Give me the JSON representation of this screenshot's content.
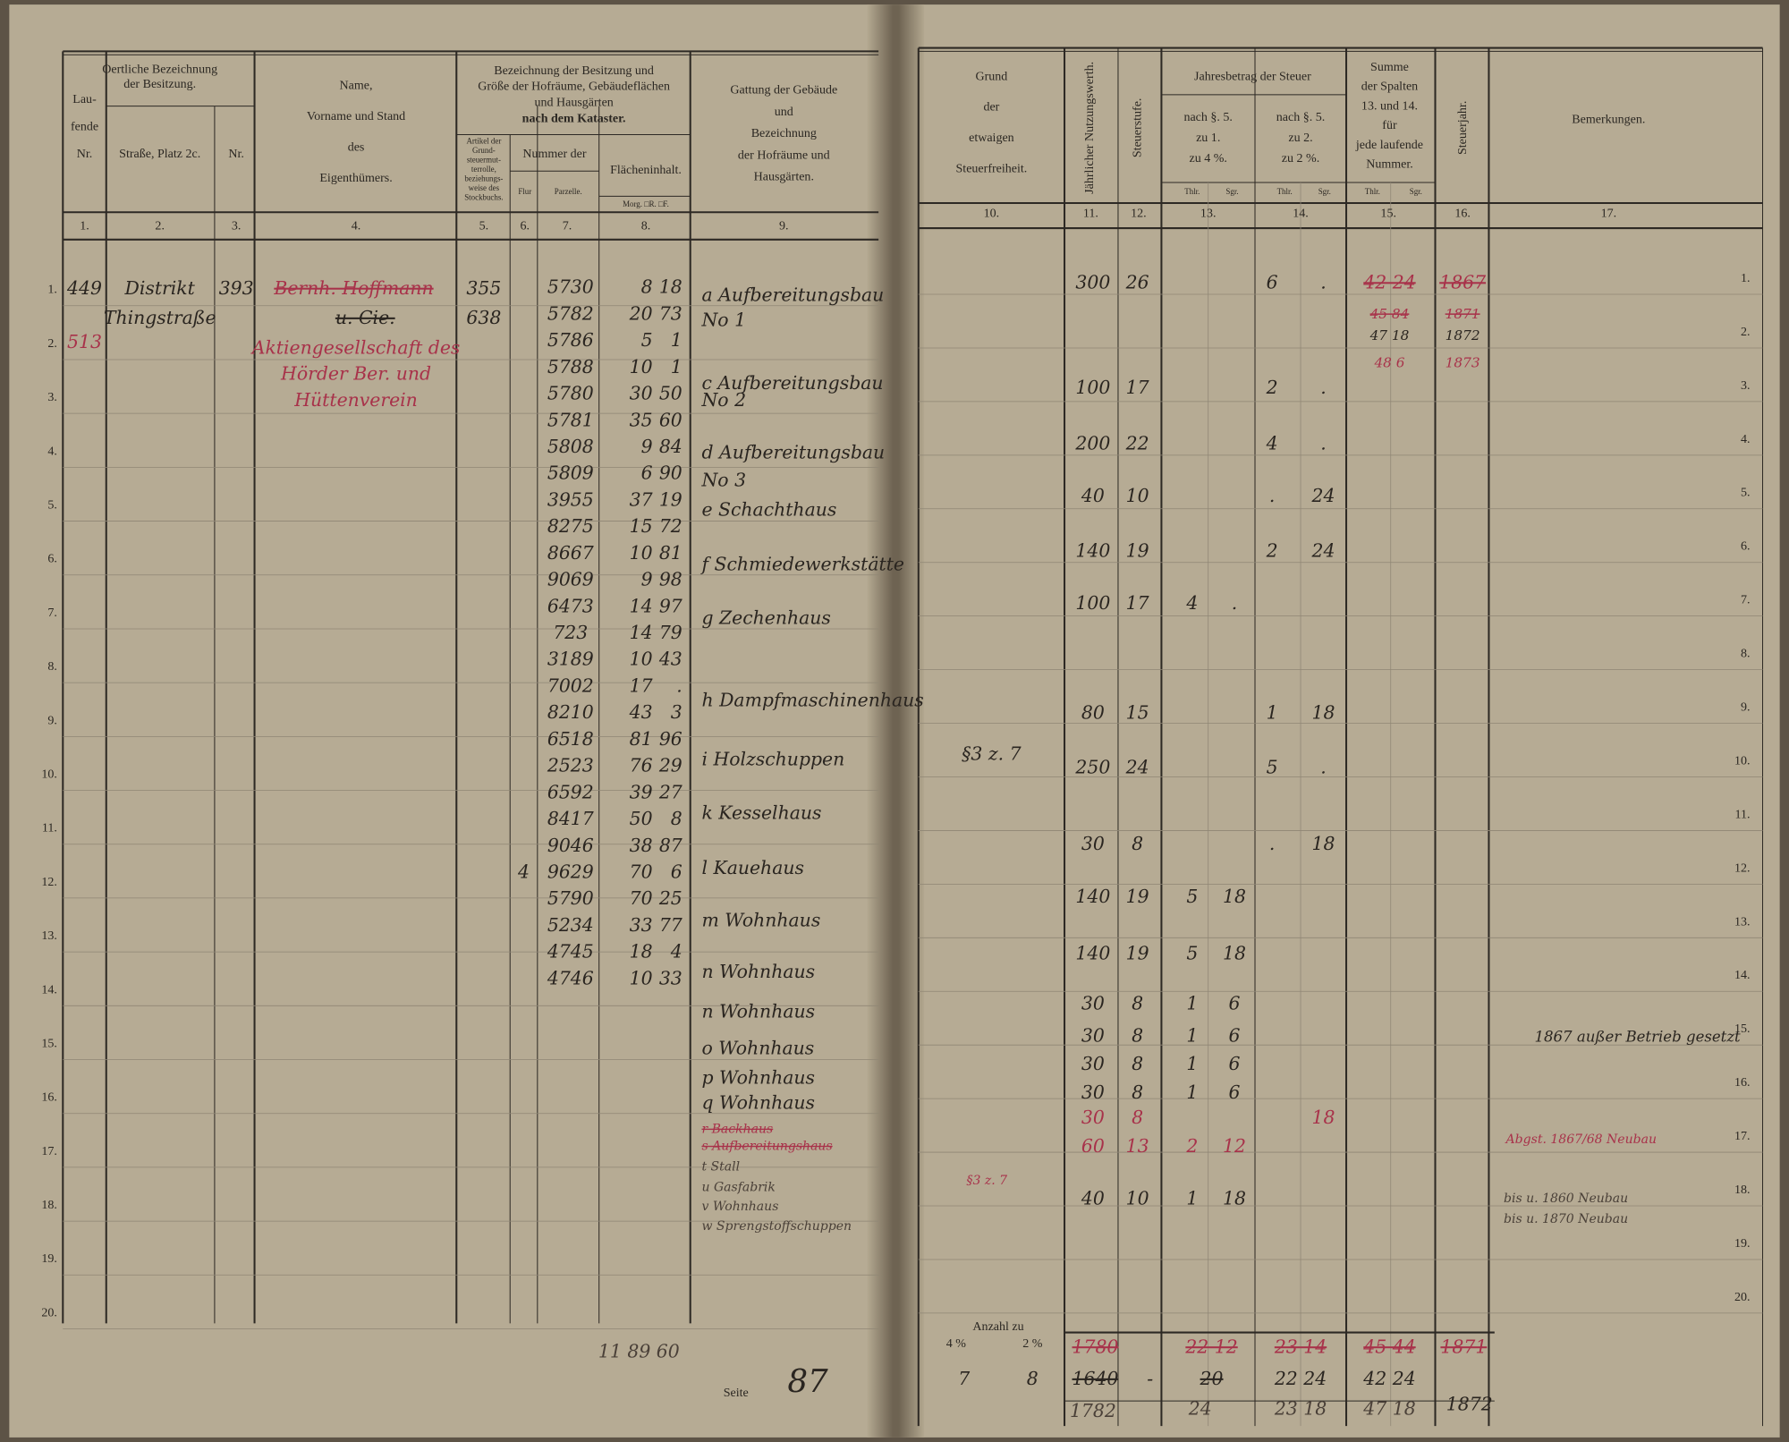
{
  "left_page": {
    "headers": {
      "col1": [
        "Lau-",
        "fende",
        "Nr."
      ],
      "col23": [
        "Oertliche Bezeichnung",
        "der Besitzung."
      ],
      "col2": "Straße, Platz 2c.",
      "col3": "Nr.",
      "col4": [
        "Name,",
        "Vorname und Stand",
        "des",
        "Eigenthümers."
      ],
      "col58": [
        "Bezeichnung der Besitzung und",
        "Größe der Hofräume, Gebäudeflächen",
        "und Hausgärten",
        "nach dem Kataster."
      ],
      "col5": [
        "Artikel der",
        "Grund-",
        "steuermut-",
        "terrolle,",
        "beziehungs-",
        "weise des",
        "Stockbuchs."
      ],
      "col67": "Nummer der",
      "col6": "Flur",
      "col7": "Parzelle.",
      "col8": "Flächeninhalt.",
      "col8_units": "Morg. □R. □F.",
      "col9": [
        "Gattung der Gebäude",
        "und",
        "Bezeichnung",
        "der Hofräume und",
        "Hausgärten."
      ]
    },
    "column_numbers": [
      "1.",
      "2.",
      "3.",
      "4.",
      "5.",
      "6.",
      "7.",
      "8.",
      "9."
    ],
    "row_numbers": [
      "1.",
      "2.",
      "3.",
      "4.",
      "5.",
      "6.",
      "7.",
      "8.",
      "9.",
      "10.",
      "11.",
      "12.",
      "13.",
      "14.",
      "15.",
      "16.",
      "17.",
      "18.",
      "19.",
      "20."
    ],
    "owner": {
      "nr": "449",
      "nr_red": "513",
      "street": [
        "Distrikt",
        "Thingstraße"
      ],
      "house_nr": "393",
      "name": "Bernh. Hoffmann",
      "name2": "u. Cie.",
      "name_red": [
        "Aktiengesellschaft des",
        "Hörder Ber. und",
        "Hüttenverein"
      ],
      "articles": [
        "355",
        "638"
      ]
    },
    "parcels": [
      {
        "parcel": "5730",
        "morgen": "8",
        "ruthen": "18"
      },
      {
        "parcel": "5782",
        "morgen": "20",
        "ruthen": "73"
      },
      {
        "parcel": "5786",
        "morgen": "5",
        "ruthen": "1"
      },
      {
        "parcel": "5788",
        "morgen": "10",
        "ruthen": "1"
      },
      {
        "parcel": "5780",
        "morgen": "30",
        "ruthen": "50"
      },
      {
        "parcel": "5781",
        "morgen": "35",
        "ruthen": "60"
      },
      {
        "parcel": "5808",
        "morgen": "9",
        "ruthen": "84"
      },
      {
        "parcel": "5809",
        "morgen": "6",
        "ruthen": "90"
      },
      {
        "parcel": "3955",
        "morgen": "37",
        "ruthen": "19"
      },
      {
        "parcel": "8275",
        "morgen": "15",
        "ruthen": "72"
      },
      {
        "parcel": "8667",
        "morgen": "10",
        "ruthen": "81"
      },
      {
        "parcel": "9069",
        "morgen": "9",
        "ruthen": "98"
      },
      {
        "parcel": "6473",
        "morgen": "14",
        "ruthen": "97"
      },
      {
        "parcel": "723",
        "morgen": "14",
        "ruthen": "79"
      },
      {
        "parcel": "3189",
        "morgen": "10",
        "ruthen": "43"
      },
      {
        "parcel": "7002",
        "morgen": "17",
        "ruthen": "."
      },
      {
        "parcel": "8210",
        "morgen": "43",
        "ruthen": "3"
      },
      {
        "parcel": "6518",
        "morgen": "81",
        "ruthen": "96"
      },
      {
        "parcel": "2523",
        "morgen": "76",
        "ruthen": "29"
      },
      {
        "parcel": "6592",
        "morgen": "39",
        "ruthen": "27"
      },
      {
        "parcel": "8417",
        "morgen": "50",
        "ruthen": "8"
      },
      {
        "parcel": "9046",
        "morgen": "38",
        "ruthen": "87"
      },
      {
        "parcel": "9629",
        "flur": "4",
        "morgen": "70",
        "ruthen": "6"
      },
      {
        "parcel": "5790",
        "morgen": "70",
        "ruthen": "25"
      },
      {
        "parcel": "5234",
        "morgen": "33",
        "ruthen": "77"
      },
      {
        "parcel": "4745",
        "morgen": "18",
        "ruthen": "4"
      },
      {
        "parcel": "4746",
        "morgen": "10",
        "ruthen": "33"
      }
    ],
    "buildings": [
      "a Aufbereitungsbau",
      "No 1",
      "c Aufbereitungsbau",
      "No 2",
      "d Aufbereitungsbau",
      "No 3",
      "e Schachthaus",
      "f Schmiedewerkstätte",
      "g Zechenhaus",
      "h Dampfmaschinenhaus",
      "i Holzschuppen",
      "k Kesselhaus",
      "l Kauehaus",
      "m Wohnhaus",
      "n Wohnhaus",
      "n Wohnhaus",
      "o Wohnhaus",
      "p Wohnhaus",
      "q Wohnhaus",
      "r Backhaus",
      "s Aufbereitungshaus",
      "t Stall",
      "u Gasfabrik",
      "v Wohnhaus",
      "w Sprengstoffschuppen"
    ],
    "footer": {
      "area_total": "11 89 60",
      "page_label": "Seite",
      "page_number": "87"
    }
  },
  "right_page": {
    "headers": {
      "col10": [
        "Grund",
        "der",
        "etwaigen",
        "Steuerfreiheit."
      ],
      "col11": "Jährlicher Nutzungswerth.",
      "col12": "Steuerstufe.",
      "col1314": "Jahresbetrag der Steuer",
      "col13": [
        "nach §. 5.",
        "zu 1.",
        "zu 4 %."
      ],
      "col14": [
        "nach §. 5.",
        "zu 2.",
        "zu 2 %."
      ],
      "col15": [
        "Summe",
        "der Spalten",
        "13. und 14.",
        "für",
        "jede laufende",
        "Nummer."
      ],
      "col16": "Steuerjahr.",
      "col17": "Bemerkungen.",
      "thlr": "Thlr.",
      "sgr": "Sgr."
    },
    "column_numbers": [
      "10.",
      "11.",
      "12.",
      "13.",
      "14.",
      "15.",
      "16.",
      "17."
    ],
    "row_numbers": [
      "1.",
      "2.",
      "3.",
      "4.",
      "5.",
      "6.",
      "7.",
      "8.",
      "9.",
      "10.",
      "11.",
      "12.",
      "13.",
      "14.",
      "15.",
      "16.",
      "17.",
      "18.",
      "19.",
      "20."
    ],
    "entries": [
      {
        "value": "300",
        "class": "26",
        "t14": "6",
        "s14": "."
      },
      {
        "value": "100",
        "class": "17",
        "t14": "2",
        "s14": "."
      },
      {
        "value": "200",
        "class": "22",
        "t14": "4",
        "s14": "."
      },
      {
        "value": "40",
        "class": "10",
        "t14": ".",
        "s14": "24"
      },
      {
        "value": "140",
        "class": "19",
        "t14": "2",
        "s14": "24"
      },
      {
        "value": "100",
        "class": "17",
        "t13": "4",
        "s13": "."
      },
      {
        "value": "80",
        "class": "15",
        "t14": "1",
        "s14": "18"
      },
      {
        "value": "250",
        "class": "24",
        "t14": "5",
        "s14": "."
      },
      {
        "value": "30",
        "class": "8",
        "t14": ".",
        "s14": "18"
      },
      {
        "value": "140",
        "class": "19",
        "t13": "5",
        "s13": "18"
      },
      {
        "value": "140",
        "class": "19",
        "t13": "5",
        "s13": "18"
      },
      {
        "value": "30",
        "class": "8",
        "t13": "1",
        "s13": "6"
      },
      {
        "value": "30",
        "class": "8",
        "t13": "1",
        "s13": "6"
      },
      {
        "value": "30",
        "class": "8",
        "t13": "1",
        "s13": "6"
      },
      {
        "value": "30",
        "class": "8",
        "t13": "1",
        "s13": "6"
      },
      {
        "value": "30",
        "class": "8",
        "s14": "18"
      },
      {
        "value": "60",
        "class": "13",
        "t13": "2",
        "s13": "12"
      },
      {
        "value": "40",
        "class": "10",
        "t13": "1",
        "s13": "18"
      }
    ],
    "sums": [
      {
        "total": "42 24",
        "year": "1867"
      },
      {
        "total": "45 84",
        "year": "1871"
      },
      {
        "total": "47 18",
        "year": "1872"
      },
      {
        "total": "48 6",
        "year": "1873"
      }
    ],
    "exemptions": [
      "§3 z. 7",
      "§3 z. 7"
    ],
    "remarks": [
      "1867 außer Betrieb gesetzt",
      "Abgst. 1867/68 Neubau",
      "bis u. 1860 Neubau",
      "bis u. 1870 Neubau"
    ],
    "footer": {
      "count_label": "Anzahl zu",
      "pct4": "4 %",
      "pct2": "2 %",
      "count4": "7",
      "count2": "8",
      "value_struck": "1780",
      "value": "1640",
      "value_new": "1782",
      "dash": "-",
      "t13_struck": "22 12",
      "t13": "20",
      "t13_new": "24",
      "t14_struck": "23 14",
      "t14": "22 24",
      "t14_new": "23 18",
      "t15_struck": "45 44",
      "t15": "42 24",
      "t15_new": "47 18",
      "year_struck": "1871",
      "year": "1872"
    }
  }
}
